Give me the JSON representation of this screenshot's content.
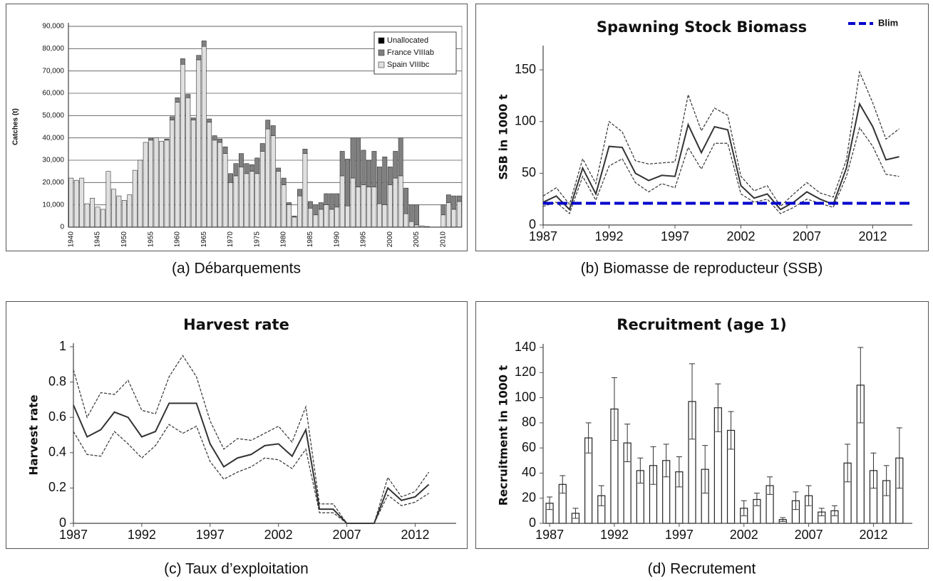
{
  "chart_data": [
    {
      "type": "bar",
      "stacked": true,
      "caption": "(a) Débarquements",
      "ylabel": "Catches (t)",
      "categories": [
        "1940",
        null,
        null,
        null,
        null,
        "1945",
        null,
        null,
        null,
        null,
        "1950",
        null,
        null,
        null,
        null,
        "1955",
        null,
        null,
        null,
        null,
        "1960",
        null,
        null,
        null,
        null,
        "1965",
        null,
        null,
        null,
        null,
        "1970",
        null,
        null,
        null,
        null,
        "1975",
        null,
        null,
        null,
        null,
        "1980",
        null,
        null,
        null,
        null,
        "1985",
        null,
        null,
        null,
        null,
        "1990",
        null,
        null,
        null,
        null,
        "1995",
        null,
        null,
        null,
        null,
        "2000",
        null,
        null,
        null,
        null,
        "2005",
        null,
        null,
        null,
        null,
        "2010",
        null,
        null,
        null
      ],
      "series": [
        {
          "name": "Spain VIIIbc",
          "color": "#e0e0e0",
          "values": [
            22000,
            21000,
            22000,
            10500,
            13000,
            9000,
            8000,
            25000,
            17000,
            14000,
            12000,
            14500,
            25500,
            30000,
            38000,
            39000,
            40000,
            38500,
            39000,
            48000,
            56000,
            73000,
            58000,
            48000,
            75000,
            81000,
            47000,
            39000,
            38000,
            33000,
            20000,
            23000,
            27000,
            24000,
            25000,
            24000,
            34000,
            44000,
            41000,
            25000,
            19000,
            10000,
            4500,
            14000,
            33000,
            8500,
            5500,
            8000,
            10000,
            8000,
            9000,
            23000,
            9500,
            22000,
            18000,
            19000,
            18000,
            18000,
            10500,
            10000,
            19000,
            22000,
            23000,
            6000,
            2500,
            1000,
            600,
            300,
            0,
            0,
            5500,
            11000,
            8000,
            11500
          ]
        },
        {
          "name": "France VIIIab",
          "color": "#808080",
          "values": [
            0,
            0,
            0,
            0,
            0,
            0,
            0,
            0,
            0,
            0,
            0,
            0,
            0,
            0,
            0,
            1000,
            0,
            0,
            500,
            1500,
            2000,
            2500,
            1500,
            1000,
            2000,
            2500,
            1500,
            2000,
            1500,
            3000,
            4000,
            5500,
            6000,
            4500,
            3000,
            7000,
            3500,
            4000,
            4500,
            1500,
            3000,
            1000,
            500,
            3000,
            2000,
            3000,
            4500,
            3000,
            5000,
            7000,
            6000,
            11000,
            21000,
            18000,
            22000,
            15500,
            12000,
            16000,
            16500,
            21500,
            8000,
            12000,
            17000,
            11500,
            7500,
            9000,
            0,
            0,
            0,
            0,
            4500,
            3500,
            6000,
            2500
          ]
        },
        {
          "name": "Unallocated",
          "color": "#000000",
          "values": [
            0,
            0,
            0,
            0,
            0,
            0,
            0,
            0,
            0,
            0,
            0,
            0,
            0,
            0,
            0,
            0,
            0,
            0,
            0,
            0,
            0,
            0,
            0,
            0,
            0,
            0,
            0,
            0,
            0,
            0,
            0,
            0,
            0,
            0,
            0,
            0,
            0,
            0,
            0,
            0,
            0,
            0,
            0,
            0,
            0,
            0,
            0,
            0,
            0,
            0,
            0,
            0,
            0,
            0,
            0,
            0,
            0,
            0,
            0,
            0,
            0,
            0,
            0,
            0,
            0,
            0,
            0,
            0,
            0,
            0,
            0,
            0,
            0,
            0
          ]
        }
      ],
      "ylim": [
        0,
        90000
      ],
      "yticks": [
        0,
        {
          "value": 10000,
          "label": "10,000"
        },
        {
          "value": 20000,
          "label": "20,000"
        },
        {
          "value": 30000,
          "label": "30,000"
        },
        {
          "value": 40000,
          "label": "40,000"
        },
        {
          "value": 50000,
          "label": "50,000"
        },
        {
          "value": 60000,
          "label": "60,000"
        },
        {
          "value": 70000,
          "label": "70,000"
        },
        {
          "value": 80000,
          "label": "80,000"
        },
        {
          "value": 90000,
          "label": "90,000"
        }
      ],
      "grid": true,
      "legend": "top-right"
    },
    {
      "type": "line",
      "title": "Spawning Stock Biomass",
      "caption": "(b) Biomasse de reproducteur (SSB)",
      "ylabel": "SSB in 1000 t",
      "x": [
        1987,
        1988,
        1989,
        1990,
        1991,
        1992,
        1993,
        1994,
        1995,
        1996,
        1997,
        1998,
        1999,
        2000,
        2001,
        2002,
        2003,
        2004,
        2005,
        2006,
        2007,
        2008,
        2009,
        2010,
        2011,
        2012,
        2013,
        2014
      ],
      "series": [
        {
          "color": "#333333",
          "values": [
            22,
            28,
            15,
            55,
            30,
            76,
            75,
            50,
            43,
            48,
            47,
            97,
            70,
            95,
            92,
            38,
            26,
            30,
            15,
            22,
            32,
            25,
            20,
            55,
            117,
            95,
            63,
            66
          ]
        },
        {
          "color": "#333333",
          "dashed": true,
          "values": [
            28,
            36,
            20,
            64,
            40,
            100,
            90,
            62,
            59,
            60,
            61,
            126,
            91,
            113,
            106,
            47,
            33,
            38,
            18,
            30,
            41,
            31,
            27,
            63,
            148,
            118,
            83,
            93
          ]
        },
        {
          "color": "#333333",
          "dashed": true,
          "values": [
            18,
            22,
            11,
            47,
            24,
            57,
            64,
            41,
            32,
            40,
            36,
            75,
            54,
            79,
            79,
            30,
            22,
            25,
            11,
            17,
            25,
            21,
            17,
            47,
            94,
            76,
            49,
            47
          ]
        }
      ],
      "reference_lines": [
        {
          "name": "Blim",
          "value": 21,
          "color": "#0000cc"
        }
      ],
      "xlim": [
        1987,
        2015
      ],
      "xticks": [
        1987,
        1992,
        1997,
        2002,
        2007,
        2012
      ],
      "ylim": [
        0,
        170
      ],
      "yticks": [
        0,
        50,
        100,
        150
      ],
      "legend": "top-right"
    },
    {
      "type": "line",
      "title": "Harvest rate",
      "caption": "(c) Taux d’exploitation",
      "ylabel": "Harvest rate",
      "x": [
        1987,
        1988,
        1989,
        1990,
        1991,
        1992,
        1993,
        1994,
        1995,
        1996,
        1997,
        1998,
        1999,
        2000,
        2001,
        2002,
        2003,
        2004,
        2005,
        2006,
        2007,
        2008,
        2009,
        2010,
        2011,
        2012,
        2013
      ],
      "series": [
        {
          "color": "#333333",
          "values": [
            0.67,
            0.49,
            0.53,
            0.63,
            0.6,
            0.49,
            0.52,
            0.68,
            0.68,
            0.68,
            0.45,
            0.32,
            0.37,
            0.39,
            0.44,
            0.45,
            0.38,
            0.53,
            0.08,
            0.08,
            0,
            0,
            0,
            0.2,
            0.13,
            0.15,
            0.22
          ]
        },
        {
          "color": "#333333",
          "dashed": true,
          "values": [
            0.87,
            0.6,
            0.74,
            0.73,
            0.81,
            0.64,
            0.62,
            0.83,
            0.95,
            0.83,
            0.58,
            0.42,
            0.48,
            0.47,
            0.51,
            0.55,
            0.46,
            0.66,
            0.11,
            0.11,
            0,
            0,
            0,
            0.26,
            0.15,
            0.18,
            0.29
          ]
        },
        {
          "color": "#333333",
          "dashed": true,
          "values": [
            0.52,
            0.39,
            0.38,
            0.52,
            0.45,
            0.37,
            0.44,
            0.56,
            0.51,
            0.55,
            0.35,
            0.25,
            0.29,
            0.32,
            0.37,
            0.36,
            0.31,
            0.42,
            0.06,
            0.06,
            0,
            0,
            0,
            0.16,
            0.1,
            0.12,
            0.17
          ]
        }
      ],
      "xlim": [
        1987,
        2015
      ],
      "xticks": [
        1987,
        1992,
        1997,
        2002,
        2007,
        2012
      ],
      "ylim": [
        0,
        1
      ],
      "yticks": [
        0,
        0.2,
        0.4,
        0.6,
        0.8,
        1
      ]
    },
    {
      "type": "bar",
      "title": "Recruitment (age 1)",
      "caption": "(d) Recrutement",
      "ylabel": "Recruitment in 1000 t",
      "x": [
        1987,
        1988,
        1989,
        1990,
        1991,
        1992,
        1993,
        1994,
        1995,
        1996,
        1997,
        1998,
        1999,
        2000,
        2001,
        2002,
        2003,
        2004,
        2005,
        2006,
        2007,
        2008,
        2009,
        2010,
        2011,
        2012,
        2013,
        2014
      ],
      "values": [
        16,
        31,
        8,
        68,
        22,
        91,
        64,
        42,
        46,
        50,
        41,
        97,
        43,
        92,
        74,
        12,
        19,
        30,
        3,
        18,
        22,
        9,
        10,
        48,
        110,
        42,
        34,
        52
      ],
      "errors": [
        5,
        7,
        4,
        12,
        8,
        25,
        15,
        10,
        15,
        13,
        12,
        30,
        19,
        19,
        15,
        6,
        5,
        7,
        1.5,
        7,
        8,
        3,
        4,
        15,
        30,
        14,
        12,
        24
      ],
      "color": "#ffffff",
      "xlim": [
        1986.5,
        2015
      ],
      "xticks": [
        1987,
        1992,
        1997,
        2002,
        2007,
        2012
      ],
      "ylim": [
        0,
        140
      ],
      "yticks": [
        0,
        20,
        40,
        60,
        80,
        100,
        120,
        140
      ]
    }
  ]
}
